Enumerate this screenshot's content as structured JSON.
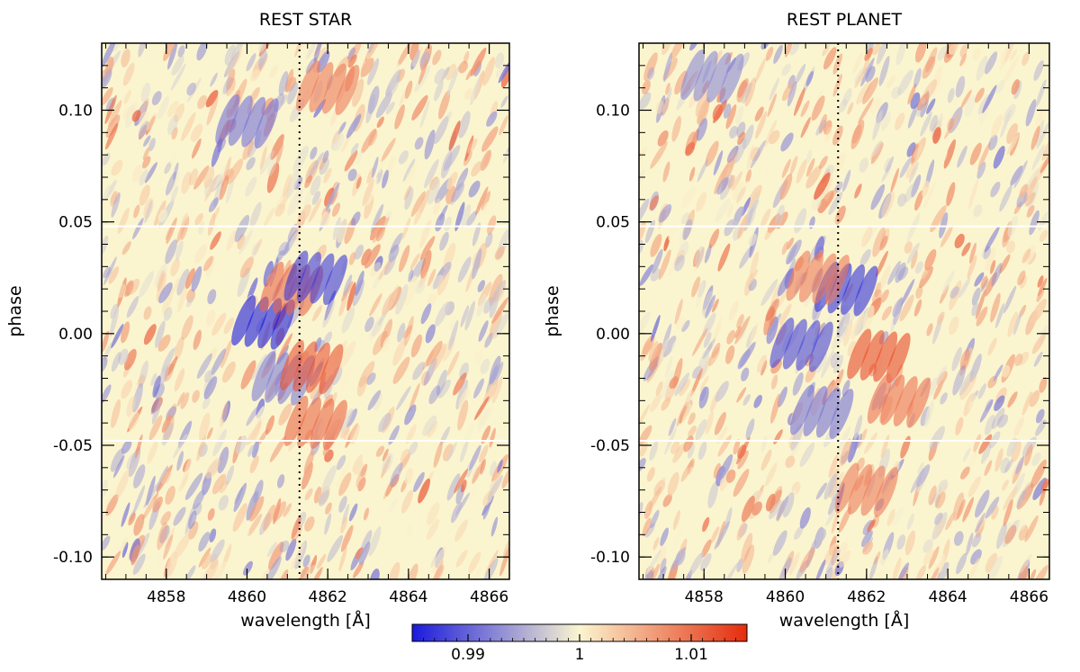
{
  "colors": {
    "low": "#1a1adc",
    "mid": "#fbf5cf",
    "high": "#e42c0c",
    "marker_line": "#000000",
    "exclusion_line": "#ffffff"
  },
  "chart_data": [
    {
      "type": "heatmap",
      "title": "REST STAR",
      "xlabel": "wavelength [Å]",
      "ylabel": "phase",
      "xlim": [
        4856.4,
        4866.5
      ],
      "ylim": [
        -0.11,
        0.13
      ],
      "xticks": [
        4858,
        4860,
        4862,
        4864,
        4866
      ],
      "xtick_labels": [
        "4858",
        "4860",
        "4862",
        "4864",
        "4866"
      ],
      "yticks": [
        0.1,
        0.05,
        0.0,
        -0.05,
        -0.1
      ],
      "ytick_labels": [
        "0.10",
        "0.05",
        "0.00",
        "-0.05",
        "-0.10"
      ],
      "reference_wavelength": 4861.3,
      "transit_phase_limits": [
        -0.048,
        0.048
      ],
      "features": [
        {
          "wavelength": 4860.4,
          "phase": 0.005,
          "value": -1
        },
        {
          "wavelength": 4860.9,
          "phase": -0.02,
          "value": -0.55
        },
        {
          "wavelength": 4861.1,
          "phase": 0.02,
          "value": 0.7
        },
        {
          "wavelength": 4861.7,
          "phase": 0.025,
          "value": -0.85
        },
        {
          "wavelength": 4861.6,
          "phase": -0.015,
          "value": 0.8
        },
        {
          "wavelength": 4861.7,
          "phase": -0.04,
          "value": 0.7
        },
        {
          "wavelength": 4860.0,
          "phase": 0.095,
          "value": -0.6
        },
        {
          "wavelength": 4862.0,
          "phase": 0.11,
          "value": 0.6
        }
      ]
    },
    {
      "type": "heatmap",
      "title": "REST PLANET",
      "xlabel": "wavelength [Å]",
      "ylabel": "phase",
      "xlim": [
        4856.4,
        4866.5
      ],
      "ylim": [
        -0.11,
        0.13
      ],
      "xticks": [
        4858,
        4860,
        4862,
        4864,
        4866
      ],
      "xtick_labels": [
        "4858",
        "4860",
        "4862",
        "4864",
        "4866"
      ],
      "yticks": [
        0.1,
        0.05,
        0.0,
        -0.05,
        -0.1
      ],
      "ytick_labels": [
        "0.10",
        "0.05",
        "0.00",
        "-0.05",
        "-0.10"
      ],
      "reference_wavelength": 4861.3,
      "transit_phase_limits": [
        -0.048,
        0.048
      ],
      "features": [
        {
          "wavelength": 4860.4,
          "phase": -0.005,
          "value": -0.8
        },
        {
          "wavelength": 4860.9,
          "phase": -0.035,
          "value": -0.6
        },
        {
          "wavelength": 4861.5,
          "phase": 0.02,
          "value": -0.9
        },
        {
          "wavelength": 4862.3,
          "phase": -0.01,
          "value": 0.85
        },
        {
          "wavelength": 4862.8,
          "phase": -0.03,
          "value": 0.65
        },
        {
          "wavelength": 4860.8,
          "phase": 0.025,
          "value": 0.6
        },
        {
          "wavelength": 4858.2,
          "phase": 0.115,
          "value": -0.5
        },
        {
          "wavelength": 4862.0,
          "phase": -0.07,
          "value": 0.6
        }
      ]
    }
  ],
  "colorbar": {
    "min": 0.985,
    "max": 1.015,
    "ticks": [
      0.99,
      1.0,
      1.01
    ],
    "tick_labels": [
      "0.99",
      "1",
      "1.01"
    ]
  }
}
